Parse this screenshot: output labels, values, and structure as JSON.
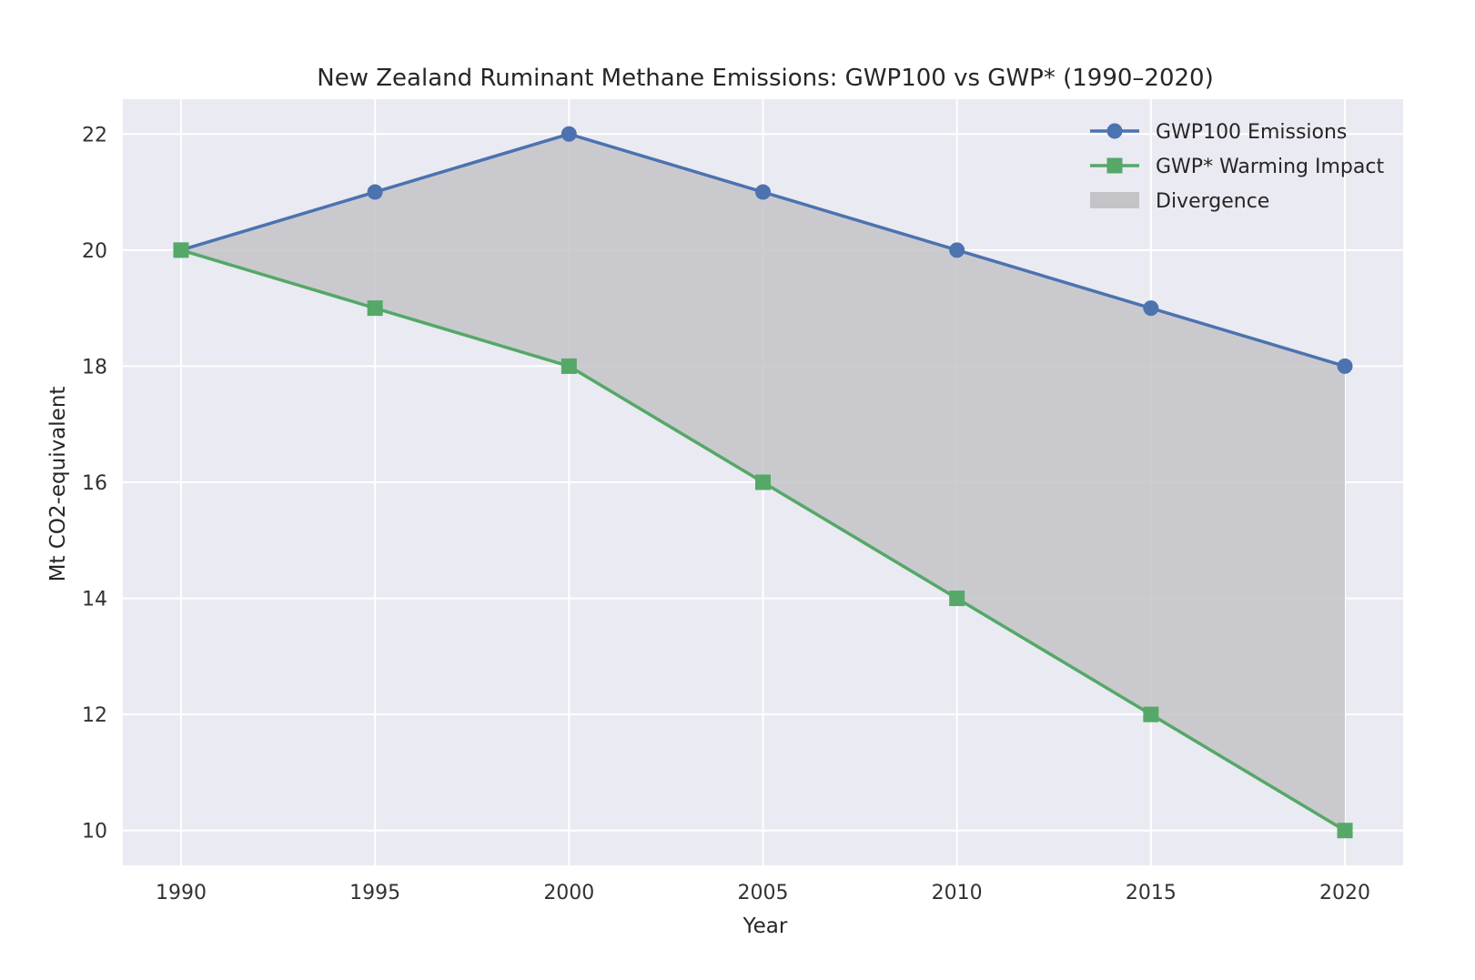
{
  "chart_data": {
    "type": "line",
    "title": "New Zealand Ruminant Methane Emissions: GWP100 vs GWP* (1990–2020)",
    "xlabel": "Year",
    "ylabel": "Mt CO2-equivalent",
    "x": [
      1990,
      1995,
      2000,
      2005,
      2010,
      2015,
      2020
    ],
    "xlim": [
      1988.5,
      2021.5
    ],
    "ylim": [
      9.4,
      22.6
    ],
    "xticks": [
      1990,
      1995,
      2000,
      2005,
      2010,
      2015,
      2020
    ],
    "yticks": [
      10,
      12,
      14,
      16,
      18,
      20,
      22
    ],
    "grid": true,
    "legend_position": "top-right",
    "series": [
      {
        "name": "GWP100 Emissions",
        "values": [
          20,
          21,
          22,
          21,
          20,
          19,
          18
        ],
        "color": "#4c72b0",
        "marker": "circle"
      },
      {
        "name": "GWP* Warming Impact",
        "values": [
          20,
          19,
          18,
          16,
          14,
          12,
          10
        ],
        "color": "#55a868",
        "marker": "square"
      }
    ],
    "fill_between": {
      "name": "Divergence",
      "color": "#c4c4c8"
    }
  }
}
